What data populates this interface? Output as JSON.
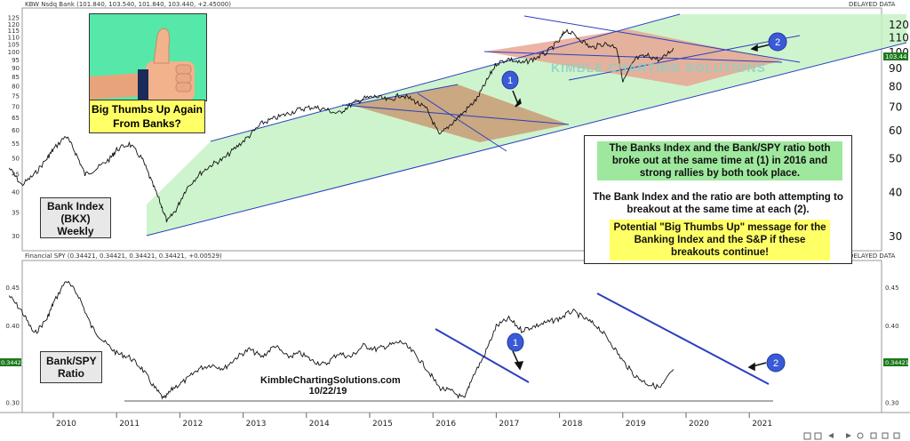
{
  "chart_data": [
    {
      "type": "line",
      "title": "KBW Nsdq Bank (101.840, 103.540, 101.840, 103.440, +2.45000)",
      "status": "DELAYED DATA",
      "scale": "log",
      "ylim": [
        28,
        130
      ],
      "yticks": [
        30,
        35,
        40,
        45,
        50,
        55,
        60,
        65,
        70,
        75,
        80,
        85,
        90,
        95,
        100,
        105,
        110,
        115,
        120,
        125
      ],
      "yticks_right": [
        30,
        40,
        50,
        60,
        70,
        80,
        90,
        100,
        110,
        120
      ],
      "last_value": "103.44",
      "x": [
        2009.3,
        2009.5,
        2009.7,
        2009.9,
        2010.0,
        2010.2,
        2010.35,
        2010.5,
        2010.7,
        2010.9,
        2011.0,
        2011.2,
        2011.4,
        2011.55,
        2011.7,
        2011.8,
        2011.95,
        2012.1,
        2012.3,
        2012.5,
        2012.7,
        2012.9,
        2013.1,
        2013.3,
        2013.5,
        2013.7,
        2013.9,
        2014.1,
        2014.3,
        2014.5,
        2014.7,
        2014.9,
        2015.1,
        2015.3,
        2015.5,
        2015.7,
        2015.9,
        2016.1,
        2016.3,
        2016.5,
        2016.7,
        2016.85,
        2017.0,
        2017.2,
        2017.4,
        2017.6,
        2017.8,
        2018.0,
        2018.1,
        2018.3,
        2018.5,
        2018.7,
        2018.9,
        2019.0,
        2019.2,
        2019.4,
        2019.6,
        2019.8
      ],
      "values": [
        47,
        42,
        45,
        50,
        53,
        58,
        52,
        45,
        47,
        50,
        53,
        55,
        50,
        43,
        37,
        33,
        36,
        41,
        45,
        48,
        50,
        54,
        58,
        63,
        65,
        67,
        69,
        70,
        69,
        67,
        71,
        74,
        75,
        73,
        76,
        73,
        69,
        58,
        63,
        68,
        74,
        83,
        93,
        96,
        93,
        96,
        100,
        108,
        116,
        110,
        103,
        106,
        104,
        82,
        96,
        98,
        95,
        103
      ],
      "annotations": [
        "1",
        "2"
      ],
      "labels": [
        "Bank Index (BKX) Weekly",
        "Big Thumbs Up Again From Banks?"
      ],
      "watermark": "KIMBLE CHARTING SOLUTIONS",
      "channels": [
        {
          "name": "rising channel",
          "fill": "#c5f2c5"
        },
        {
          "name": "2016 breakout channel",
          "fill": "#c9a07a"
        },
        {
          "name": "2018 falling channel",
          "fill": "#e8a090"
        }
      ]
    },
    {
      "type": "line",
      "title": "Financial SPY (0.34421, 0.34421, 0.34421, 0.34421, +0.00529)",
      "ylim": [
        0.29,
        0.48
      ],
      "yticks": [
        0.3,
        0.35,
        0.4,
        0.45
      ],
      "last_value": "0.34421",
      "support": 0.305,
      "x": [
        2009.3,
        2009.5,
        2009.7,
        2009.9,
        2010.0,
        2010.2,
        2010.4,
        2010.6,
        2010.8,
        2011.0,
        2011.2,
        2011.4,
        2011.6,
        2011.75,
        2011.9,
        2012.1,
        2012.3,
        2012.5,
        2012.7,
        2012.9,
        2013.1,
        2013.3,
        2013.5,
        2013.7,
        2013.9,
        2014.1,
        2014.3,
        2014.5,
        2014.7,
        2014.9,
        2015.1,
        2015.3,
        2015.5,
        2015.7,
        2015.9,
        2016.1,
        2016.3,
        2016.5,
        2016.6,
        2016.8,
        2017.0,
        2017.2,
        2017.4,
        2017.6,
        2017.8,
        2018.0,
        2018.2,
        2018.4,
        2018.6,
        2018.8,
        2019.0,
        2019.2,
        2019.4,
        2019.6,
        2019.8
      ],
      "values": [
        0.44,
        0.42,
        0.39,
        0.41,
        0.43,
        0.46,
        0.44,
        0.4,
        0.38,
        0.365,
        0.36,
        0.345,
        0.32,
        0.305,
        0.32,
        0.33,
        0.345,
        0.35,
        0.345,
        0.36,
        0.37,
        0.36,
        0.375,
        0.36,
        0.365,
        0.355,
        0.35,
        0.365,
        0.36,
        0.375,
        0.37,
        0.375,
        0.38,
        0.365,
        0.345,
        0.32,
        0.315,
        0.305,
        0.33,
        0.36,
        0.4,
        0.41,
        0.395,
        0.4,
        0.405,
        0.41,
        0.42,
        0.41,
        0.4,
        0.38,
        0.355,
        0.335,
        0.325,
        0.32,
        0.344
      ],
      "annotations": [
        "1",
        "2"
      ],
      "labels": [
        "Bank/SPY Ratio"
      ],
      "credit": "KimbleChartingSolutions.com",
      "date": "10/22/19"
    }
  ],
  "x_axis": {
    "years": [
      "2010",
      "2011",
      "2012",
      "2013",
      "2014",
      "2015",
      "2016",
      "2017",
      "2018",
      "2019",
      "2020",
      "2021"
    ],
    "year_values": [
      2010,
      2011,
      2012,
      2013,
      2014,
      2015,
      2016,
      2017,
      2018,
      2019,
      2020,
      2021
    ]
  },
  "info": {
    "p1": "The Banks Index and the Bank/SPY ratio both broke out at the same time at (1) in 2016 and strong rallies by both took place.",
    "p2": "The Bank Index and the ratio are both attempting to breakout at the same time at each (2).",
    "p3": "Potential \"Big Thumbs Up\" message for the Banking Index and the S&P if these breakouts continue!"
  },
  "colors": {
    "price_line": "#111111",
    "trend_line": "#2a3fbf",
    "marker_fill": "#3a5ad8",
    "green_fill": "#c5f2c5",
    "brown_fill": "#c9a07a",
    "red_fill": "#e8a090",
    "highlight_green": "#9ee89e",
    "highlight_yellow": "#ffff66",
    "thumb_bg": "#55e8a8",
    "value_badge": "#1e7a1e"
  },
  "icons": [
    "thumbs-up-icon",
    "arrow-icon",
    "marker-1-icon",
    "marker-2-icon"
  ],
  "toolbar": [
    "zoom-in-icon",
    "zoom-out-icon",
    "pan-left-icon",
    "pan-right-icon",
    "settings-icon"
  ]
}
